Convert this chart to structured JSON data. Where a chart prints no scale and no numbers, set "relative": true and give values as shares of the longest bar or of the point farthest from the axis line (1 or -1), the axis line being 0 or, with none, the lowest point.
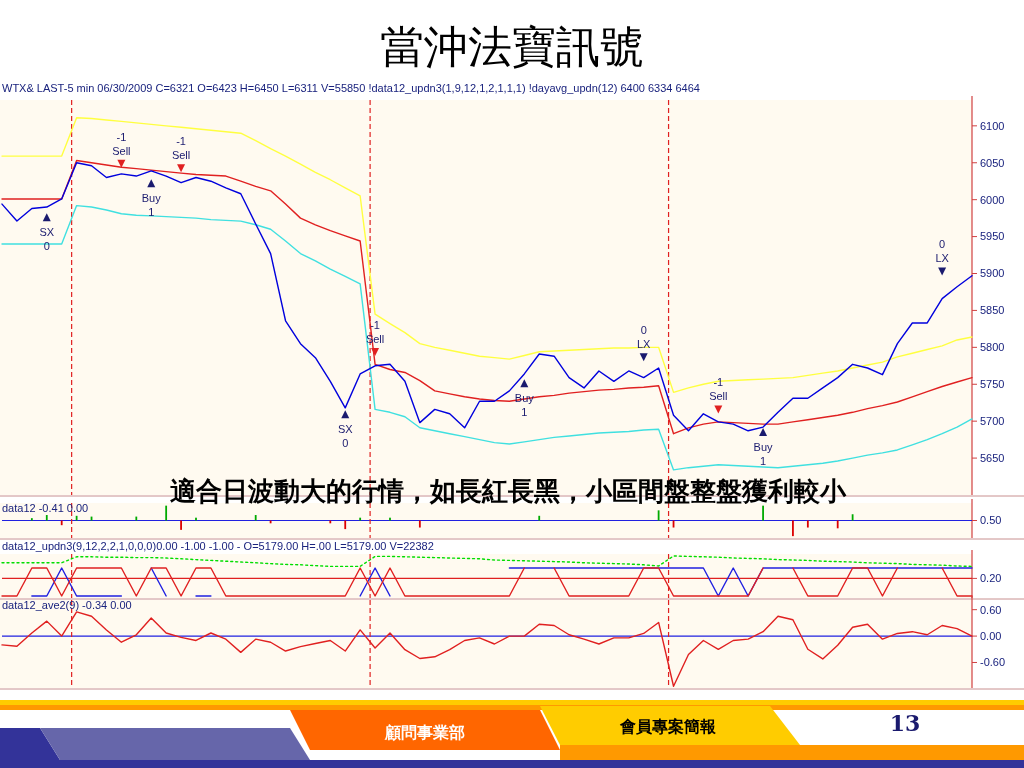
{
  "chart_data": [
    {
      "type": "line",
      "title": "當沖法寶訊號",
      "subtitle": "WTX& LAST-5 min   06/30/2009   C=6321   O=6423  H=6450  L=6311  V=55850  !data12_updn3(1,9,12,1,2,1,1,1)  !dayavg_updn(12)   6400   6334   6464",
      "ylim": [
        5600,
        6135
      ],
      "yticks": [
        5650,
        5700,
        5750,
        5800,
        5850,
        5900,
        5950,
        6000,
        6050,
        6100
      ],
      "tick_labels": "y",
      "categories": [
        null,
        null,
        null,
        null,
        null,
        null,
        null,
        null,
        null,
        null,
        null,
        null,
        null,
        null,
        null,
        null,
        null,
        null,
        null,
        null,
        null,
        null,
        null,
        null,
        null,
        null,
        null,
        null,
        null,
        null,
        null,
        null,
        null,
        null,
        null,
        null,
        null,
        null,
        null,
        null,
        null,
        null,
        null,
        null,
        null,
        null,
        null,
        null,
        null,
        null,
        null,
        null,
        null,
        null,
        null,
        null,
        null,
        null,
        null,
        null,
        null,
        null,
        null,
        null,
        null,
        null
      ],
      "series": [
        {
          "color": "#ffff40",
          "values": [
            6059,
            6059,
            6059,
            6059,
            6059,
            6111,
            6110,
            6108,
            6106,
            6104,
            6102,
            6100,
            6098,
            6096,
            6094,
            6092,
            6090,
            6080,
            6069,
            6059,
            6048,
            6037,
            6027,
            6016,
            6005,
            5845,
            5832,
            5820,
            5805,
            5800,
            5796,
            5792,
            5788,
            5786,
            5784,
            5789,
            5794,
            5795,
            5796,
            5797,
            5798,
            5799,
            5799,
            5800,
            5800,
            5739,
            5745,
            5750,
            5754,
            5755,
            5756,
            5757,
            5758,
            5759,
            5762,
            5765,
            5768,
            5772,
            5776,
            5780,
            5787,
            5792,
            5797,
            5802,
            5810,
            5814
          ]
        },
        {
          "color": "#e02020",
          "values": [
            6001,
            6001,
            6001,
            6001,
            6001,
            6053,
            6050,
            6047,
            6044,
            6042,
            6040,
            6038,
            6036,
            6034,
            6033,
            6032,
            6025,
            6018,
            6012,
            5994,
            5975,
            5966,
            5958,
            5951,
            5944,
            5777,
            5770,
            5766,
            5755,
            5741,
            5737,
            5733,
            5730,
            5728,
            5727,
            5730,
            5733,
            5735,
            5738,
            5740,
            5742,
            5743,
            5745,
            5746,
            5748,
            5683,
            5691,
            5696,
            5699,
            5698,
            5697,
            5696,
            5696,
            5699,
            5702,
            5705,
            5708,
            5712,
            5717,
            5721,
            5726,
            5733,
            5740,
            5747,
            5753,
            5759
          ]
        },
        {
          "color": "#40e0e0",
          "values": [
            5940,
            5940,
            5940,
            5940,
            5940,
            5992,
            5990,
            5986,
            5981,
            5979,
            5978,
            5977,
            5976,
            5975,
            5973,
            5972,
            5971,
            5966,
            5960,
            5944,
            5927,
            5917,
            5906,
            5896,
            5886,
            5716,
            5712,
            5706,
            5691,
            5687,
            5683,
            5679,
            5675,
            5671,
            5669,
            5672,
            5675,
            5678,
            5680,
            5682,
            5684,
            5685,
            5686,
            5688,
            5689,
            5634,
            5637,
            5639,
            5641,
            5640,
            5639,
            5638,
            5637,
            5639,
            5641,
            5643,
            5646,
            5650,
            5654,
            5657,
            5661,
            5668,
            5675,
            5683,
            5692,
            5703
          ]
        },
        {
          "color": "#0000dd",
          "values": [
            5994,
            5971,
            5988,
            5990,
            6001,
            6050,
            6046,
            6030,
            6035,
            6032,
            6039,
            6032,
            6023,
            6030,
            6025,
            6016,
            6008,
            5967,
            5927,
            5836,
            5805,
            5786,
            5754,
            5718,
            5764,
            5775,
            5777,
            5754,
            5698,
            5716,
            5710,
            5691,
            5727,
            5727,
            5741,
            5764,
            5791,
            5788,
            5759,
            5745,
            5768,
            5754,
            5768,
            5759,
            5772,
            5708,
            5687,
            5710,
            5699,
            5696,
            5687,
            5692,
            5712,
            5731,
            5731,
            5745,
            5759,
            5777,
            5772,
            5763,
            5805,
            5833,
            5833,
            5866,
            5882,
            5897
          ]
        },
        {
          "type": "scatter",
          "marker": "triangle",
          "values": [
            null,
            null,
            null,
            5975,
            null,
            null,
            null,
            null,
            6050,
            null,
            6021,
            null,
            6044,
            null,
            null,
            null,
            null,
            null,
            null,
            null,
            null,
            null,
            null,
            5708,
            null,
            5795,
            null,
            null,
            null,
            null,
            null,
            null,
            null,
            null,
            null,
            5750,
            null,
            null,
            null,
            null,
            null,
            null,
            null,
            5788,
            null,
            null,
            null,
            null,
            5717,
            null,
            null,
            5684,
            null,
            null,
            null,
            null,
            null,
            null,
            null,
            null,
            null,
            null,
            null,
            5904,
            null,
            null
          ],
          "colors": [
            null,
            null,
            null,
            "#1a1a6e",
            null,
            null,
            null,
            null,
            "#e02020",
            null,
            "#1a1a6e",
            null,
            "#e02020",
            null,
            null,
            null,
            null,
            null,
            null,
            null,
            null,
            null,
            null,
            "#1a1a6e",
            null,
            "#e02020",
            null,
            null,
            null,
            null,
            null,
            null,
            null,
            null,
            null,
            "#1a1a6e",
            null,
            null,
            null,
            null,
            null,
            null,
            null,
            "#1a1a6e",
            null,
            null,
            null,
            null,
            "#e02020",
            null,
            null,
            "#1a1a6e",
            null,
            null,
            null,
            null,
            null,
            null,
            null,
            null,
            null,
            null,
            null,
            "#1a1a6e",
            null,
            null
          ]
        }
      ],
      "annotations": [
        "適合日波動大的行情，如長紅長黑，小區間盤整盤獲利較小",
        "顧問事業部",
        "會員專案簡報",
        "13",
        "SX",
        "0",
        "-1",
        "Sell",
        "Buy",
        "1",
        "-1",
        "Sell",
        "SX",
        "0",
        "-1",
        "Sell",
        "Buy",
        "1",
        "0",
        "LX",
        "-1",
        "Sell",
        "Buy",
        "1",
        "0",
        "LX"
      ]
    },
    {
      "type": "bar",
      "relative": true,
      "subtitle": "data12  -0.41  0.00",
      "tick_labels": "y",
      "categories": [
        null,
        null,
        null,
        null,
        null,
        null,
        null,
        null,
        null,
        null,
        null,
        null,
        null,
        null,
        null,
        null,
        null,
        null,
        null,
        null,
        null,
        null,
        null,
        null,
        null,
        null,
        null,
        null,
        null,
        null,
        null,
        null,
        null,
        null,
        null,
        null,
        null,
        null,
        null,
        null,
        null,
        null,
        null,
        null,
        null,
        null,
        null,
        null,
        null,
        null,
        null,
        null,
        null,
        null,
        null,
        null,
        null,
        null,
        null,
        null,
        null,
        null,
        null,
        null,
        null,
        null
      ],
      "series": [
        {
          "values": [
            0,
            0,
            0.15,
            0.35,
            -0.3,
            0.3,
            0.25,
            0,
            0,
            0.25,
            0,
            0.95,
            -0.6,
            0.18,
            0,
            0,
            0,
            0.35,
            -0.18,
            0,
            0,
            0,
            -0.18,
            -0.55,
            0.18,
            0,
            0.18,
            0,
            -0.45,
            0,
            0,
            0,
            0,
            0,
            0,
            0,
            0.3,
            0,
            0,
            0,
            0,
            0,
            0,
            0,
            0.65,
            -0.45,
            0,
            0,
            0,
            0,
            0,
            0.95,
            0,
            -1,
            -0.45,
            0,
            -0.5,
            0.4,
            0,
            0,
            0,
            0,
            0,
            0,
            0,
            0
          ],
          "colors": [
            "#00aa00",
            "#00aa00",
            "#00aa00",
            "#00aa00",
            "#dd0000",
            "#00aa00",
            "#00aa00",
            "#00aa00",
            "#00aa00",
            "#00aa00",
            "#00aa00",
            "#00aa00",
            "#dd0000",
            "#00aa00",
            "#00aa00",
            "#00aa00",
            "#00aa00",
            "#00aa00",
            "#dd0000",
            "#00aa00",
            "#00aa00",
            "#00aa00",
            "#dd0000",
            "#dd0000",
            "#00aa00",
            "#00aa00",
            "#00aa00",
            "#00aa00",
            "#dd0000",
            "#00aa00",
            "#00aa00",
            "#00aa00",
            "#00aa00",
            "#00aa00",
            "#00aa00",
            "#00aa00",
            "#00aa00",
            "#00aa00",
            "#00aa00",
            "#00aa00",
            "#00aa00",
            "#00aa00",
            "#00aa00",
            "#00aa00",
            "#00aa00",
            "#dd0000",
            "#00aa00",
            "#00aa00",
            "#00aa00",
            "#00aa00",
            "#00aa00",
            "#00aa00",
            "#00aa00",
            "#dd0000",
            "#dd0000",
            "#00aa00",
            "#dd0000",
            "#00aa00",
            "#00aa00",
            "#00aa00",
            "#00aa00",
            "#00aa00",
            "#00aa00",
            "#00aa00",
            "#00aa00",
            "#00aa00"
          ]
        }
      ],
      "ref_lines": [
        {
          "axis": "y",
          "value": 0,
          "color": "#2020e0"
        }
      ],
      "annotations": [
        "0.50"
      ]
    },
    {
      "type": "line",
      "relative": true,
      "subtitle": "data12_updn3(9,12,2,2,1,0,0,0)0.00 -1.00 -1.00 - O=5179.00  H=.00  L=5179.00  V=22382",
      "tick_labels": "y",
      "categories": [
        null,
        null,
        null,
        null,
        null,
        null,
        null,
        null,
        null,
        null,
        null,
        null,
        null,
        null,
        null,
        null,
        null,
        null,
        null,
        null,
        null,
        null,
        null,
        null,
        null,
        null,
        null,
        null,
        null,
        null,
        null,
        null,
        null,
        null,
        null,
        null,
        null,
        null,
        null,
        null,
        null,
        null,
        null,
        null,
        null,
        null,
        null,
        null,
        null,
        null,
        null,
        null,
        null,
        null,
        null,
        null,
        null,
        null,
        null,
        null,
        null,
        null,
        null,
        null,
        null,
        null
      ],
      "series": [
        {
          "color": "#00dd00",
          "line_style": "dotted",
          "values": [
            0.83,
            0.83,
            0.83,
            0.83,
            0.83,
            0.98,
            0.98,
            0.97,
            0.97,
            0.96,
            0.96,
            0.95,
            0.93,
            0.91,
            0.89,
            0.87,
            0.85,
            0.83,
            0.81,
            0.79,
            0.78,
            0.76,
            0.74,
            0.74,
            0.74,
            0.99,
            0.99,
            0.98,
            0.97,
            0.96,
            0.95,
            0.94,
            0.93,
            0.9,
            0.89,
            0.88,
            0.87,
            0.86,
            0.85,
            0.83,
            0.82,
            0.81,
            0.8,
            0.78,
            0.75,
            1,
            0.99,
            0.98,
            0.97,
            0.95,
            0.94,
            0.93,
            0.91,
            0.9,
            0.89,
            0.87,
            0.86,
            0.85,
            0.83,
            0.82,
            0.81,
            0.79,
            0.78,
            0.77,
            0.75,
            0.74
          ]
        },
        {
          "color": "#2020e0",
          "values": [
            null,
            null,
            0,
            0,
            0.7,
            0,
            0,
            0,
            0,
            null,
            0.7,
            0,
            null,
            0,
            0,
            null,
            null,
            null,
            null,
            null,
            null,
            null,
            null,
            null,
            0,
            0.7,
            0,
            null,
            null,
            null,
            null,
            null,
            null,
            null,
            0.7,
            0.7,
            0.7,
            0.7,
            0.7,
            0.7,
            0.7,
            0.7,
            0.7,
            0.7,
            0.7,
            0.7,
            0.7,
            0.7,
            0,
            0.7,
            0,
            0.7,
            0.7,
            0.7,
            0.7,
            0.7,
            0.7,
            0.7,
            0.7,
            0.7,
            0.7,
            0.7,
            0.7,
            0.7,
            0.7,
            0.7
          ]
        },
        {
          "color": "#e02020",
          "values": [
            0,
            0,
            0.7,
            0.7,
            0,
            0.7,
            0.7,
            0.7,
            0.7,
            0,
            0.7,
            0.7,
            0,
            0.7,
            0.7,
            0,
            0,
            0,
            0,
            0,
            0,
            0,
            0,
            0,
            0.7,
            0,
            0.7,
            0,
            0,
            0,
            0,
            0,
            0,
            0,
            0,
            0.7,
            null,
            0.7,
            0,
            0,
            0,
            0,
            0,
            0.7,
            0.7,
            0,
            0,
            0,
            0,
            0,
            0,
            0.7,
            null,
            0.7,
            0,
            0,
            0,
            0.7,
            0.7,
            0,
            0.7,
            null,
            null,
            0.7,
            0,
            0
          ]
        }
      ],
      "ref_lines": [
        {
          "axis": "y",
          "value": 0.44,
          "color": "#e02020"
        }
      ],
      "annotations": [
        "0.20"
      ]
    },
    {
      "type": "line",
      "subtitle": "data12_ave2(9)  -0.34  0.00",
      "ylim": [
        -1.18,
        0.82
      ],
      "yticks": [
        {
          "value": 0.6,
          "label": "0.60"
        },
        {
          "value": 0,
          "label": "0.00"
        },
        {
          "value": -0.6,
          "label": "-0.60"
        }
      ],
      "tick_labels": "y",
      "categories": [
        null,
        null,
        null,
        null,
        null,
        null,
        null,
        null,
        null,
        null,
        null,
        null,
        null,
        null,
        null,
        null,
        null,
        null,
        null,
        null,
        null,
        null,
        null,
        null,
        null,
        null,
        null,
        null,
        null,
        null,
        null,
        null,
        null,
        null,
        null,
        null,
        null,
        null,
        null,
        null,
        null,
        null,
        null,
        null,
        null,
        null,
        null,
        null,
        null,
        null,
        null,
        null,
        null,
        null,
        null,
        null,
        null,
        null,
        null,
        null,
        null,
        null,
        null,
        null,
        null,
        null
      ],
      "series": [
        {
          "color": "#e02020",
          "values": [
            -0.2,
            -0.23,
            0.07,
            0.34,
            0,
            0.55,
            0.45,
            0.14,
            -0.14,
            0.03,
            0.41,
            0.07,
            -0.03,
            -0.1,
            0.07,
            -0.07,
            -0.37,
            -0.07,
            -0.14,
            -0.34,
            -0.24,
            -0.17,
            -0.1,
            -0.34,
            0.14,
            -0.27,
            0.07,
            -0.31,
            -0.51,
            -0.47,
            -0.31,
            -0.1,
            -0.04,
            -0.18,
            0,
            0,
            0.27,
            0.24,
            0.03,
            -0.07,
            -0.18,
            -0.04,
            -0.04,
            0.06,
            0.31,
            -1.14,
            -0.42,
            -0.1,
            -0.3,
            -0.1,
            -0.07,
            0.1,
            0.45,
            0.37,
            -0.3,
            -0.52,
            -0.21,
            0.2,
            0.27,
            -0.07,
            0.06,
            0.1,
            0.03,
            0.24,
            0.17,
            0
          ]
        }
      ],
      "ref_lines": [
        {
          "axis": "y",
          "value": 0,
          "color": "#2020e0"
        }
      ]
    }
  ]
}
